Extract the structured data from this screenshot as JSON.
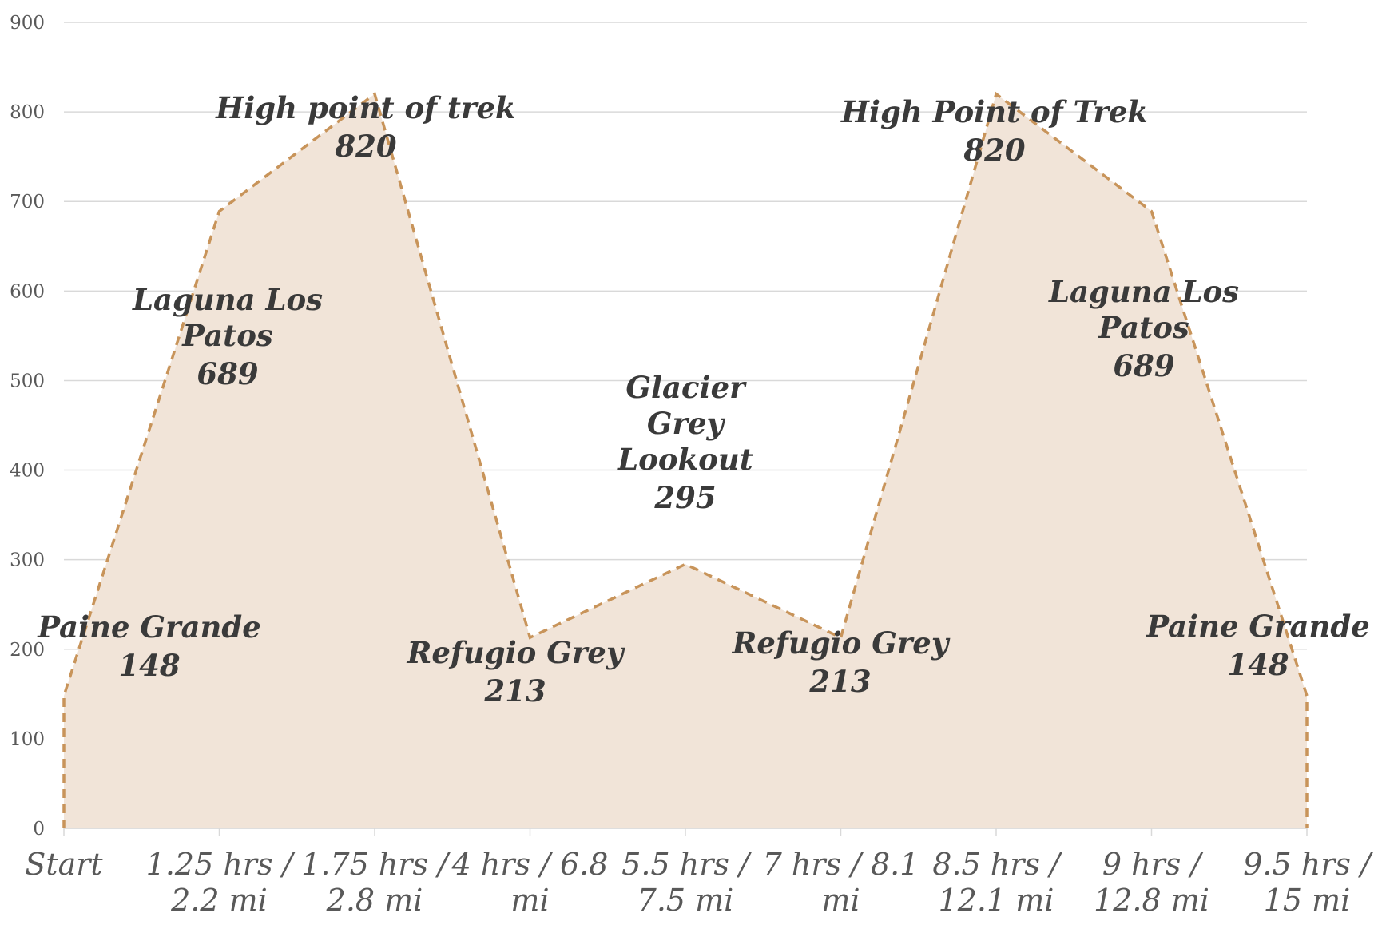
{
  "chart_data": {
    "type": "area",
    "title": "",
    "xlabel": "",
    "ylabel": "",
    "ylim": [
      0,
      900
    ],
    "yticks": [
      0,
      100,
      200,
      300,
      400,
      500,
      600,
      700,
      800,
      900
    ],
    "grid": true,
    "legend": "none",
    "categories": [
      "Start",
      "1.25 hrs / 2.2 mi",
      "1.75 hrs / 2.8 mi",
      "4 hrs / 6.8 mi",
      "5.5 hrs / 7.5 mi",
      "7 hrs / 8.1 mi",
      "8.5 hrs / 12.1 mi",
      "9 hrs / 12.8 mi",
      "9.5 hrs / 15 mi"
    ],
    "series": [
      {
        "values": [
          148,
          689,
          820,
          213,
          295,
          213,
          820,
          689,
          148
        ],
        "labels": [
          "Paine Grande",
          "Laguna Los Patos",
          "High point of trek",
          "Refugio Grey",
          "Glacier Grey Lookout",
          "Refugio Grey",
          "High Point of Trek",
          "Laguna Los Patos",
          "Paine Grande"
        ]
      }
    ],
    "colors": {
      "fill": "#f1e4d8",
      "line": "#c8945a",
      "grid": "#d9d9d9",
      "text": "#595959",
      "label": "#3a3a3a"
    }
  }
}
